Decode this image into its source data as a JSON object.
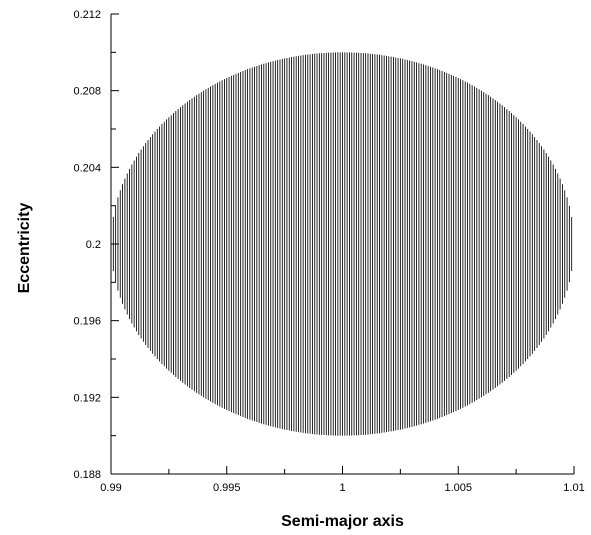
{
  "chart_data": {
    "type": "scatter",
    "title": "",
    "xlabel": "Semi-major axis",
    "ylabel": "Eccentricity",
    "xlim": [
      0.99,
      1.01
    ],
    "ylim": [
      0.188,
      0.212
    ],
    "x_ticks": [
      0.99,
      0.995,
      1,
      1.005,
      1.01
    ],
    "x_tick_labels": [
      "0.99",
      "0.995",
      "1",
      "1.005",
      "1.01"
    ],
    "y_ticks": [
      0.188,
      0.192,
      0.196,
      0.2,
      0.204,
      0.208,
      0.212
    ],
    "y_tick_labels": [
      "0.188",
      "0.192",
      "0.196",
      "0.2",
      "0.204",
      "0.208",
      "0.212"
    ],
    "x_minor_step": 0.0025,
    "y_minor_step": 0.002,
    "grid": false,
    "legend": "none",
    "trajectory": {
      "description_of_shape": "closed oscillation filling an ellipse",
      "center": {
        "x": 1.0,
        "y": 0.2
      },
      "x_range": [
        0.99,
        1.01
      ],
      "y_range": [
        0.19,
        0.21
      ],
      "vertical_segment_count": 200
    },
    "line_color": "#000000"
  }
}
